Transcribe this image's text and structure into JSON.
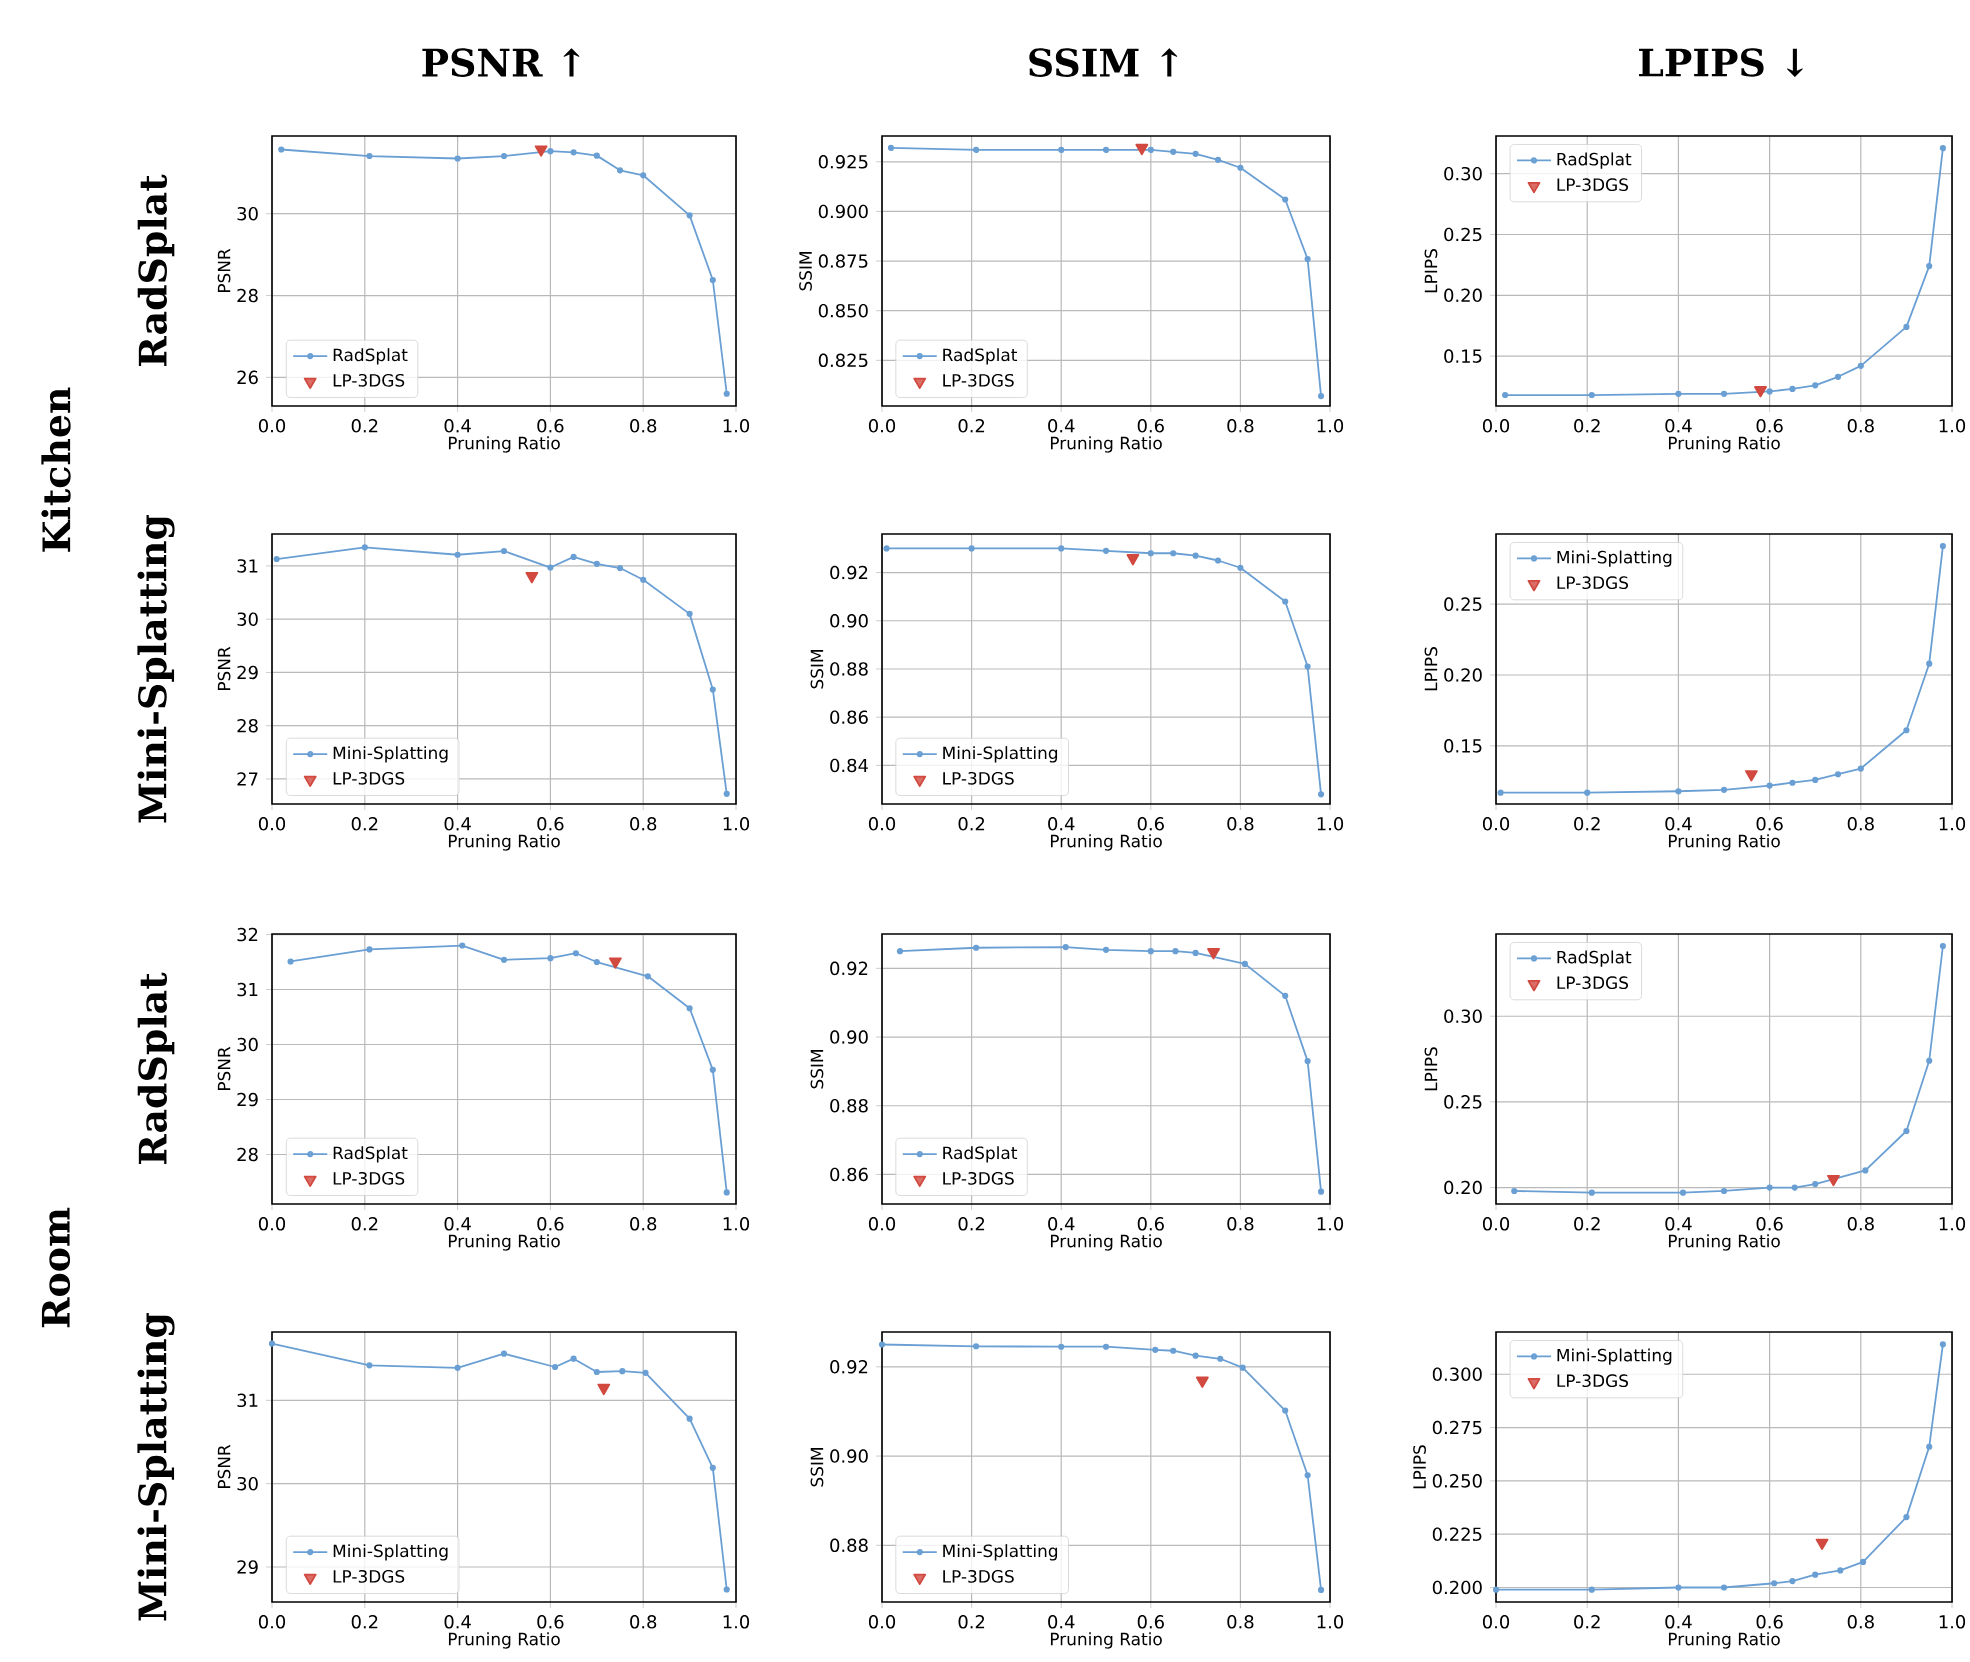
{
  "chart_data": [
    {
      "type": "line",
      "title": "PSNR ↑",
      "annotations": [
        "Kitchen",
        "RadSplat"
      ],
      "xlabel": "Pruning Ratio",
      "ylabel": "PSNR",
      "xlim": [
        0,
        1
      ],
      "ylim": [
        25.3,
        31.9
      ],
      "xticks": [
        {
          "value": 0,
          "label": "0.0"
        },
        {
          "value": 0.2,
          "label": "0.2"
        },
        {
          "value": 0.4,
          "label": "0.4"
        },
        {
          "value": 0.6,
          "label": "0.6"
        },
        {
          "value": 0.8,
          "label": "0.8"
        },
        {
          "value": 1,
          "label": "1.0"
        }
      ],
      "yticks": [
        26,
        28,
        30
      ],
      "grid": true,
      "legend": "bottom left",
      "x": [
        0.02,
        0.21,
        0.4,
        0.5,
        0.6,
        0.65,
        0.7,
        0.75,
        0.8,
        0.9,
        0.95,
        0.98
      ],
      "series": [
        {
          "name": "RadSplat",
          "color": "#6a9fd4",
          "marker": "circle",
          "values": [
            31.57,
            31.41,
            31.35,
            31.41,
            31.53,
            31.5,
            31.42,
            31.06,
            30.94,
            29.96,
            28.38,
            25.6
          ]
        },
        {
          "name": "LP-3DGS",
          "type": "scatter",
          "color": "#d1493f",
          "marker": "triangle",
          "x": [
            0.58
          ],
          "values": [
            31.57
          ]
        }
      ]
    },
    {
      "type": "line",
      "title": "SSIM ↑",
      "xlabel": "Pruning Ratio",
      "ylabel": "SSIM",
      "xlim": [
        0,
        1
      ],
      "ylim": [
        0.802,
        0.938
      ],
      "xticks": [
        {
          "value": 0,
          "label": "0.0"
        },
        {
          "value": 0.2,
          "label": "0.2"
        },
        {
          "value": 0.4,
          "label": "0.4"
        },
        {
          "value": 0.6,
          "label": "0.6"
        },
        {
          "value": 0.8,
          "label": "0.8"
        },
        {
          "value": 1,
          "label": "1.0"
        }
      ],
      "yticks": [
        0.825,
        {
          "value": 0.85,
          "label": "0.850"
        },
        0.875,
        {
          "value": 0.9,
          "label": "0.900"
        },
        0.925
      ],
      "grid": true,
      "legend": "bottom left",
      "x": [
        0.02,
        0.21,
        0.4,
        0.5,
        0.6,
        0.65,
        0.7,
        0.75,
        0.8,
        0.9,
        0.95,
        0.98
      ],
      "series": [
        {
          "name": "RadSplat",
          "color": "#6a9fd4",
          "marker": "circle",
          "values": [
            0.932,
            0.931,
            0.931,
            0.931,
            0.931,
            0.93,
            0.929,
            0.926,
            0.922,
            0.906,
            0.876,
            0.807
          ]
        },
        {
          "name": "LP-3DGS",
          "type": "scatter",
          "color": "#d1493f",
          "marker": "triangle",
          "x": [
            0.58
          ],
          "values": [
            0.932
          ]
        }
      ]
    },
    {
      "type": "line",
      "title": "LPIPS ↓",
      "xlabel": "Pruning Ratio",
      "ylabel": "LPIPS",
      "xlim": [
        0,
        1
      ],
      "ylim": [
        0.109,
        0.331
      ],
      "xticks": [
        {
          "value": 0,
          "label": "0.0"
        },
        {
          "value": 0.2,
          "label": "0.2"
        },
        {
          "value": 0.4,
          "label": "0.4"
        },
        {
          "value": 0.6,
          "label": "0.6"
        },
        {
          "value": 0.8,
          "label": "0.8"
        },
        {
          "value": 1,
          "label": "1.0"
        }
      ],
      "yticks": [
        0.15,
        {
          "value": 0.2,
          "label": "0.20"
        },
        0.25,
        {
          "value": 0.3,
          "label": "0.30"
        }
      ],
      "grid": true,
      "legend": "top left",
      "x": [
        0.02,
        0.21,
        0.4,
        0.5,
        0.6,
        0.65,
        0.7,
        0.75,
        0.8,
        0.9,
        0.95,
        0.98
      ],
      "series": [
        {
          "name": "RadSplat",
          "color": "#6a9fd4",
          "marker": "circle",
          "values": [
            0.118,
            0.118,
            0.119,
            0.119,
            0.121,
            0.123,
            0.126,
            0.133,
            0.142,
            0.174,
            0.224,
            0.321
          ]
        },
        {
          "name": "LP-3DGS",
          "type": "scatter",
          "color": "#d1493f",
          "marker": "triangle",
          "x": [
            0.58
          ],
          "values": [
            0.122
          ]
        }
      ]
    },
    {
      "type": "line",
      "annotations": [
        "Mini-Splatting"
      ],
      "xlabel": "Pruning Ratio",
      "ylabel": "PSNR",
      "xlim": [
        0,
        1
      ],
      "ylim": [
        26.53,
        31.6
      ],
      "xticks": [
        {
          "value": 0,
          "label": "0.0"
        },
        {
          "value": 0.2,
          "label": "0.2"
        },
        {
          "value": 0.4,
          "label": "0.4"
        },
        {
          "value": 0.6,
          "label": "0.6"
        },
        {
          "value": 0.8,
          "label": "0.8"
        },
        {
          "value": 1,
          "label": "1.0"
        }
      ],
      "yticks": [
        27,
        28,
        29,
        30,
        31
      ],
      "grid": true,
      "legend": "bottom left",
      "x": [
        0.01,
        0.2,
        0.4,
        0.5,
        0.6,
        0.65,
        0.7,
        0.75,
        0.8,
        0.9,
        0.95,
        0.98
      ],
      "series": [
        {
          "name": "Mini-Splatting",
          "color": "#6a9fd4",
          "marker": "circle",
          "values": [
            31.13,
            31.35,
            31.21,
            31.28,
            30.97,
            31.17,
            31.04,
            30.96,
            30.74,
            30.1,
            28.68,
            26.72
          ]
        },
        {
          "name": "LP-3DGS",
          "type": "scatter",
          "color": "#d1493f",
          "marker": "triangle",
          "x": [
            0.56
          ],
          "values": [
            30.81
          ]
        }
      ]
    },
    {
      "type": "line",
      "xlabel": "Pruning Ratio",
      "ylabel": "SSIM",
      "xlim": [
        0,
        1
      ],
      "ylim": [
        0.824,
        0.936
      ],
      "xticks": [
        {
          "value": 0,
          "label": "0.0"
        },
        {
          "value": 0.2,
          "label": "0.2"
        },
        {
          "value": 0.4,
          "label": "0.4"
        },
        {
          "value": 0.6,
          "label": "0.6"
        },
        {
          "value": 0.8,
          "label": "0.8"
        },
        {
          "value": 1,
          "label": "1.0"
        }
      ],
      "yticks": [
        0.84,
        0.86,
        0.88,
        {
          "value": 0.9,
          "label": "0.90"
        },
        0.92
      ],
      "grid": true,
      "legend": "bottom left",
      "x": [
        0.01,
        0.2,
        0.4,
        0.5,
        0.6,
        0.65,
        0.7,
        0.75,
        0.8,
        0.9,
        0.95,
        0.98
      ],
      "series": [
        {
          "name": "Mini-Splatting",
          "color": "#6a9fd4",
          "marker": "circle",
          "values": [
            0.93,
            0.93,
            0.93,
            0.929,
            0.928,
            0.928,
            0.927,
            0.925,
            0.922,
            0.908,
            0.881,
            0.828
          ]
        },
        {
          "name": "LP-3DGS",
          "type": "scatter",
          "color": "#d1493f",
          "marker": "triangle",
          "x": [
            0.56
          ],
          "values": [
            0.926
          ]
        }
      ]
    },
    {
      "type": "line",
      "xlabel": "Pruning Ratio",
      "ylabel": "LPIPS",
      "xlim": [
        0,
        1
      ],
      "ylim": [
        0.109,
        0.2995
      ],
      "xticks": [
        {
          "value": 0,
          "label": "0.0"
        },
        {
          "value": 0.2,
          "label": "0.2"
        },
        {
          "value": 0.4,
          "label": "0.4"
        },
        {
          "value": 0.6,
          "label": "0.6"
        },
        {
          "value": 0.8,
          "label": "0.8"
        },
        {
          "value": 1,
          "label": "1.0"
        }
      ],
      "yticks": [
        0.15,
        {
          "value": 0.2,
          "label": "0.20"
        },
        0.25
      ],
      "grid": true,
      "legend": "top left",
      "x": [
        0.01,
        0.2,
        0.4,
        0.5,
        0.6,
        0.65,
        0.7,
        0.75,
        0.8,
        0.9,
        0.95,
        0.98
      ],
      "series": [
        {
          "name": "Mini-Splatting",
          "color": "#6a9fd4",
          "marker": "circle",
          "values": [
            0.117,
            0.117,
            0.118,
            0.119,
            0.122,
            0.124,
            0.126,
            0.13,
            0.134,
            0.161,
            0.208,
            0.291
          ]
        },
        {
          "name": "LP-3DGS",
          "type": "scatter",
          "color": "#d1493f",
          "marker": "triangle",
          "x": [
            0.56
          ],
          "values": [
            0.13
          ]
        }
      ]
    },
    {
      "type": "line",
      "annotations": [
        "Room",
        "RadSplat"
      ],
      "xlabel": "Pruning Ratio",
      "ylabel": "PSNR",
      "xlim": [
        0,
        1
      ],
      "ylim": [
        27.1,
        32.01
      ],
      "xticks": [
        {
          "value": 0,
          "label": "0.0"
        },
        {
          "value": 0.2,
          "label": "0.2"
        },
        {
          "value": 0.4,
          "label": "0.4"
        },
        {
          "value": 0.6,
          "label": "0.6"
        },
        {
          "value": 0.8,
          "label": "0.8"
        },
        {
          "value": 1,
          "label": "1.0"
        }
      ],
      "yticks": [
        28,
        29,
        30,
        31,
        32
      ],
      "grid": true,
      "legend": "bottom left",
      "x": [
        0.04,
        0.21,
        0.41,
        0.5,
        0.6,
        0.655,
        0.7,
        0.75,
        0.81,
        0.9,
        0.95,
        0.98
      ],
      "series": [
        {
          "name": "RadSplat",
          "color": "#6a9fd4",
          "marker": "circle",
          "values": [
            31.51,
            31.73,
            31.8,
            31.54,
            31.57,
            31.66,
            31.5,
            null,
            31.24,
            30.66,
            29.54,
            27.31
          ]
        },
        {
          "name": "LP-3DGS",
          "type": "scatter",
          "color": "#d1493f",
          "marker": "triangle",
          "x": [
            0.74
          ],
          "values": [
            31.51
          ]
        }
      ]
    },
    {
      "type": "line",
      "xlabel": "Pruning Ratio",
      "ylabel": "SSIM",
      "xlim": [
        0,
        1
      ],
      "ylim": [
        0.8514,
        0.93
      ],
      "xticks": [
        {
          "value": 0,
          "label": "0.0"
        },
        {
          "value": 0.2,
          "label": "0.2"
        },
        {
          "value": 0.4,
          "label": "0.4"
        },
        {
          "value": 0.6,
          "label": "0.6"
        },
        {
          "value": 0.8,
          "label": "0.8"
        },
        {
          "value": 1,
          "label": "1.0"
        }
      ],
      "yticks": [
        0.86,
        0.88,
        {
          "value": 0.9,
          "label": "0.90"
        },
        0.92
      ],
      "grid": true,
      "legend": "bottom left",
      "x": [
        0.04,
        0.21,
        0.41,
        0.5,
        0.6,
        0.655,
        0.7,
        0.75,
        0.81,
        0.9,
        0.95,
        0.98
      ],
      "series": [
        {
          "name": "RadSplat",
          "color": "#6a9fd4",
          "marker": "circle",
          "values": [
            0.925,
            0.926,
            0.9262,
            0.9254,
            0.925,
            0.925,
            0.9245,
            null,
            0.9213,
            0.912,
            0.893,
            0.855
          ]
        },
        {
          "name": "LP-3DGS",
          "type": "scatter",
          "color": "#d1493f",
          "marker": "triangle",
          "x": [
            0.74
          ],
          "values": [
            0.9247
          ]
        }
      ]
    },
    {
      "type": "line",
      "xlabel": "Pruning Ratio",
      "ylabel": "LPIPS",
      "xlim": [
        0,
        1
      ],
      "ylim": [
        0.1904,
        0.348
      ],
      "xticks": [
        {
          "value": 0,
          "label": "0.0"
        },
        {
          "value": 0.2,
          "label": "0.2"
        },
        {
          "value": 0.4,
          "label": "0.4"
        },
        {
          "value": 0.6,
          "label": "0.6"
        },
        {
          "value": 0.8,
          "label": "0.8"
        },
        {
          "value": 1,
          "label": "1.0"
        }
      ],
      "yticks": [
        {
          "value": 0.2,
          "label": "0.20"
        },
        0.25,
        {
          "value": 0.3,
          "label": "0.30"
        }
      ],
      "grid": true,
      "legend": "top left",
      "x": [
        0.04,
        0.21,
        0.41,
        0.5,
        0.6,
        0.655,
        0.7,
        0.75,
        0.81,
        0.9,
        0.95,
        0.98
      ],
      "series": [
        {
          "name": "RadSplat",
          "color": "#6a9fd4",
          "marker": "circle",
          "values": [
            0.198,
            0.197,
            0.197,
            0.198,
            0.2,
            0.2,
            0.202,
            null,
            0.21,
            0.233,
            0.274,
            0.341
          ]
        },
        {
          "name": "LP-3DGS",
          "type": "scatter",
          "color": "#d1493f",
          "marker": "triangle",
          "x": [
            0.74
          ],
          "values": [
            0.205
          ]
        }
      ]
    },
    {
      "type": "line",
      "annotations": [
        "Mini-Splatting"
      ],
      "xlabel": "Pruning Ratio",
      "ylabel": "PSNR",
      "xlim": [
        0,
        1
      ],
      "ylim": [
        28.58,
        31.82
      ],
      "xticks": [
        {
          "value": 0,
          "label": "0.0"
        },
        {
          "value": 0.2,
          "label": "0.2"
        },
        {
          "value": 0.4,
          "label": "0.4"
        },
        {
          "value": 0.6,
          "label": "0.6"
        },
        {
          "value": 0.8,
          "label": "0.8"
        },
        {
          "value": 1,
          "label": "1.0"
        }
      ],
      "yticks": [
        29,
        30,
        31
      ],
      "grid": true,
      "legend": "bottom left",
      "x": [
        0.0,
        0.21,
        0.4,
        0.5,
        0.61,
        0.65,
        0.7,
        0.755,
        0.805,
        0.9,
        0.95,
        0.98
      ],
      "series": [
        {
          "name": "Mini-Splatting",
          "color": "#6a9fd4",
          "marker": "circle",
          "values": [
            31.68,
            31.42,
            31.39,
            31.56,
            31.4,
            31.5,
            31.34,
            31.35,
            31.33,
            30.78,
            30.19,
            28.73
          ]
        },
        {
          "name": "LP-3DGS",
          "type": "scatter",
          "color": "#d1493f",
          "marker": "triangle",
          "x": [
            0.715
          ],
          "values": [
            31.15
          ]
        }
      ]
    },
    {
      "type": "line",
      "xlabel": "Pruning Ratio",
      "ylabel": "SSIM",
      "xlim": [
        0,
        1
      ],
      "ylim": [
        0.8673,
        0.9278
      ],
      "xticks": [
        {
          "value": 0,
          "label": "0.0"
        },
        {
          "value": 0.2,
          "label": "0.2"
        },
        {
          "value": 0.4,
          "label": "0.4"
        },
        {
          "value": 0.6,
          "label": "0.6"
        },
        {
          "value": 0.8,
          "label": "0.8"
        },
        {
          "value": 1,
          "label": "1.0"
        }
      ],
      "yticks": [
        0.88,
        {
          "value": 0.9,
          "label": "0.90"
        },
        0.92
      ],
      "grid": true,
      "legend": "bottom left",
      "x": [
        0.0,
        0.21,
        0.4,
        0.5,
        0.61,
        0.65,
        0.7,
        0.755,
        0.805,
        0.9,
        0.95,
        0.98
      ],
      "series": [
        {
          "name": "Mini-Splatting",
          "color": "#6a9fd4",
          "marker": "circle",
          "values": [
            0.925,
            0.9246,
            0.9245,
            0.9245,
            0.9238,
            0.9236,
            0.9225,
            0.9218,
            0.9198,
            0.9102,
            0.8957,
            0.87
          ]
        },
        {
          "name": "LP-3DGS",
          "type": "scatter",
          "color": "#d1493f",
          "marker": "triangle",
          "x": [
            0.715
          ],
          "values": [
            0.9169
          ]
        }
      ]
    },
    {
      "type": "line",
      "xlabel": "Pruning Ratio",
      "ylabel": "LPIPS",
      "xlim": [
        0,
        1
      ],
      "ylim": [
        0.1932,
        0.3198
      ],
      "xticks": [
        {
          "value": 0,
          "label": "0.0"
        },
        {
          "value": 0.2,
          "label": "0.2"
        },
        {
          "value": 0.4,
          "label": "0.4"
        },
        {
          "value": 0.6,
          "label": "0.6"
        },
        {
          "value": 0.8,
          "label": "0.8"
        },
        {
          "value": 1,
          "label": "1.0"
        }
      ],
      "yticks": [
        {
          "value": 0.2,
          "label": "0.200"
        },
        0.225,
        {
          "value": 0.25,
          "label": "0.250"
        },
        0.275,
        {
          "value": 0.3,
          "label": "0.300"
        }
      ],
      "grid": true,
      "legend": "top left",
      "x": [
        0.0,
        0.21,
        0.4,
        0.5,
        0.61,
        0.65,
        0.7,
        0.755,
        0.805,
        0.9,
        0.95,
        0.98
      ],
      "series": [
        {
          "name": "Mini-Splatting",
          "color": "#6a9fd4",
          "marker": "circle",
          "values": [
            0.199,
            0.199,
            0.2,
            0.2,
            0.202,
            0.203,
            0.206,
            0.208,
            0.212,
            0.233,
            0.266,
            0.314
          ]
        },
        {
          "name": "LP-3DGS",
          "type": "scatter",
          "color": "#d1493f",
          "marker": "triangle",
          "x": [
            0.715
          ],
          "values": [
            0.221
          ]
        }
      ]
    }
  ]
}
